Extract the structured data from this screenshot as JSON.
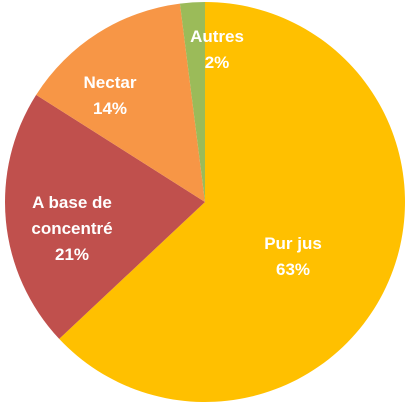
{
  "chart_data": {
    "type": "pie",
    "categories": [
      "Pur jus",
      "A base de concentré",
      "Nectar",
      "Autres"
    ],
    "values": [
      63,
      21,
      14,
      2
    ],
    "value_labels": [
      "63%",
      "21%",
      "14%",
      "2%"
    ],
    "colors": [
      "#FFC000",
      "#C0504D",
      "#F79646",
      "#9BBB59"
    ]
  }
}
